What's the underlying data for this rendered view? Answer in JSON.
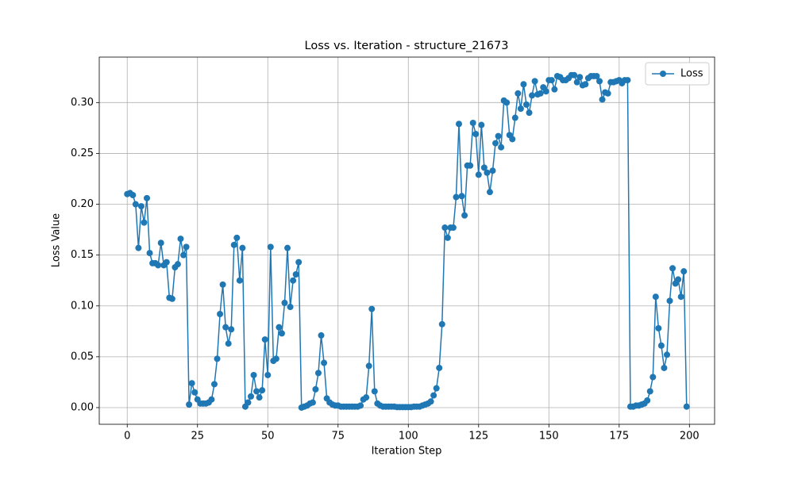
{
  "chart_data": {
    "type": "line",
    "title": "Loss vs. Iteration - structure_21673",
    "x_label": "Iteration Step",
    "y_label": "Loss Value",
    "x": [
      0,
      1,
      2,
      3,
      4,
      5,
      6,
      7,
      8,
      9,
      10,
      11,
      12,
      13,
      14,
      15,
      16,
      17,
      18,
      19,
      20,
      21,
      22,
      23,
      24,
      25,
      26,
      27,
      28,
      29,
      30,
      31,
      32,
      33,
      34,
      35,
      36,
      37,
      38,
      39,
      40,
      41,
      42,
      43,
      44,
      45,
      46,
      47,
      48,
      49,
      50,
      51,
      52,
      53,
      54,
      55,
      56,
      57,
      58,
      59,
      60,
      61,
      62,
      63,
      64,
      65,
      66,
      67,
      68,
      69,
      70,
      71,
      72,
      73,
      74,
      75,
      76,
      77,
      78,
      79,
      80,
      81,
      82,
      83,
      84,
      85,
      86,
      87,
      88,
      89,
      90,
      91,
      92,
      93,
      94,
      95,
      96,
      97,
      98,
      99,
      100,
      101,
      102,
      103,
      104,
      105,
      106,
      107,
      108,
      109,
      110,
      111,
      112,
      113,
      114,
      115,
      116,
      117,
      118,
      119,
      120,
      121,
      122,
      123,
      124,
      125,
      126,
      127,
      128,
      129,
      130,
      131,
      132,
      133,
      134,
      135,
      136,
      137,
      138,
      139,
      140,
      141,
      142,
      143,
      144,
      145,
      146,
      147,
      148,
      149,
      150,
      151,
      152,
      153,
      154,
      155,
      156,
      157,
      158,
      159,
      160,
      161,
      162,
      163,
      164,
      165,
      166,
      167,
      168,
      169,
      170,
      171,
      172,
      173,
      174,
      175,
      176,
      177,
      178,
      179,
      180,
      181,
      182,
      183,
      184,
      185,
      186,
      187,
      188,
      189,
      190,
      191,
      192,
      193,
      194,
      195,
      196,
      197,
      198,
      199
    ],
    "series": [
      {
        "name": "Loss",
        "color": "#1f77b4",
        "values": [
          0.21,
          0.211,
          0.209,
          0.2,
          0.157,
          0.198,
          0.182,
          0.206,
          0.152,
          0.142,
          0.142,
          0.14,
          0.162,
          0.14,
          0.143,
          0.108,
          0.107,
          0.138,
          0.141,
          0.166,
          0.15,
          0.158,
          0.003,
          0.024,
          0.015,
          0.008,
          0.004,
          0.004,
          0.004,
          0.005,
          0.008,
          0.023,
          0.048,
          0.092,
          0.121,
          0.079,
          0.063,
          0.077,
          0.16,
          0.167,
          0.125,
          0.157,
          0.001,
          0.005,
          0.011,
          0.032,
          0.016,
          0.01,
          0.017,
          0.067,
          0.032,
          0.158,
          0.046,
          0.048,
          0.079,
          0.073,
          0.103,
          0.157,
          0.099,
          0.125,
          0.131,
          0.143,
          0.0,
          0.001,
          0.002,
          0.004,
          0.005,
          0.018,
          0.034,
          0.071,
          0.044,
          0.009,
          0.005,
          0.003,
          0.002,
          0.002,
          0.001,
          0.001,
          0.001,
          0.001,
          0.001,
          0.001,
          0.001,
          0.002,
          0.008,
          0.01,
          0.041,
          0.097,
          0.016,
          0.004,
          0.002,
          0.001,
          0.001,
          0.001,
          0.001,
          0.001,
          0.0005,
          0.0005,
          0.0005,
          0.0005,
          0.0005,
          0.0005,
          0.001,
          0.001,
          0.001,
          0.002,
          0.003,
          0.004,
          0.006,
          0.012,
          0.019,
          0.039,
          0.082,
          0.177,
          0.167,
          0.177,
          0.177,
          0.207,
          0.279,
          0.208,
          0.189,
          0.238,
          0.238,
          0.28,
          0.269,
          0.229,
          0.278,
          0.236,
          0.231,
          0.212,
          0.233,
          0.26,
          0.267,
          0.256,
          0.302,
          0.3,
          0.268,
          0.264,
          0.285,
          0.309,
          0.294,
          0.318,
          0.298,
          0.29,
          0.307,
          0.321,
          0.308,
          0.309,
          0.315,
          0.311,
          0.322,
          0.322,
          0.313,
          0.326,
          0.325,
          0.322,
          0.322,
          0.324,
          0.327,
          0.327,
          0.32,
          0.325,
          0.317,
          0.318,
          0.324,
          0.326,
          0.326,
          0.326,
          0.321,
          0.303,
          0.31,
          0.309,
          0.32,
          0.32,
          0.321,
          0.322,
          0.319,
          0.322,
          0.322,
          0.001,
          0.001,
          0.002,
          0.002,
          0.003,
          0.004,
          0.007,
          0.016,
          0.03,
          0.109,
          0.078,
          0.061,
          0.039,
          0.052,
          0.105,
          0.137,
          0.122,
          0.126,
          0.109,
          0.134,
          0.001
        ]
      }
    ],
    "xlim": [
      -9.95,
      208.95
    ],
    "ylim": [
      -0.0164,
      0.3447
    ],
    "xticks": [
      0,
      25,
      50,
      75,
      100,
      125,
      150,
      175,
      200
    ],
    "yticks": [
      {
        "value": 0,
        "label": "0.00"
      },
      {
        "value": 0.05,
        "label": "0.05"
      },
      {
        "value": 0.1,
        "label": "0.10"
      },
      {
        "value": 0.15,
        "label": "0.15"
      },
      {
        "value": 0.2,
        "label": "0.20"
      },
      {
        "value": 0.25,
        "label": "0.25"
      },
      {
        "value": 0.3,
        "label": "0.30"
      }
    ],
    "grid": true,
    "legend": "upper right"
  }
}
